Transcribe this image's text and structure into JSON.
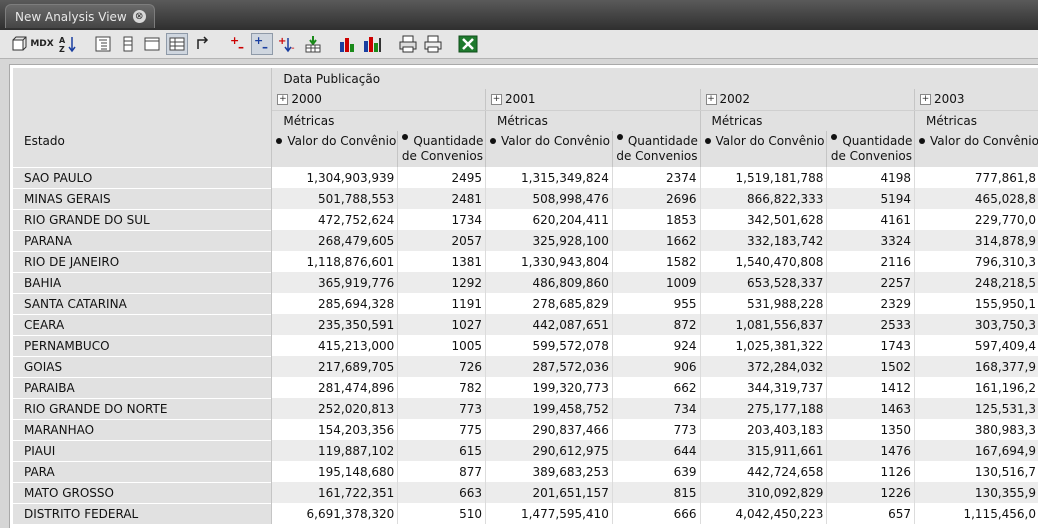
{
  "tab": {
    "title": "New Analysis View",
    "close": "⊗"
  },
  "toolbar": {
    "mdx_label": "MDX",
    "sort_label": "AZ"
  },
  "pivot": {
    "column_dimension": "Data Publicação",
    "row_dimension": "Estado",
    "metrics_label": "Métricas",
    "years": [
      "2000",
      "2001",
      "2002",
      "2003"
    ],
    "metric_value": "Valor do Convênio",
    "metric_qty_line1": "Quantidade",
    "metric_qty_line2": "de Convenios",
    "rows": [
      {
        "estado": "SAO PAULO",
        "cells": [
          "1,304,903,939",
          "2495",
          "1,315,349,824",
          "2374",
          "1,519,181,788",
          "4198",
          "777,861,8"
        ]
      },
      {
        "estado": "MINAS GERAIS",
        "cells": [
          "501,788,553",
          "2481",
          "508,998,476",
          "2696",
          "866,822,333",
          "5194",
          "465,028,8"
        ]
      },
      {
        "estado": "RIO GRANDE DO SUL",
        "cells": [
          "472,752,624",
          "1734",
          "620,204,411",
          "1853",
          "342,501,628",
          "4161",
          "229,770,0"
        ]
      },
      {
        "estado": "PARANA",
        "cells": [
          "268,479,605",
          "2057",
          "325,928,100",
          "1662",
          "332,183,742",
          "3324",
          "314,878,9"
        ]
      },
      {
        "estado": "RIO DE JANEIRO",
        "cells": [
          "1,118,876,601",
          "1381",
          "1,330,943,804",
          "1582",
          "1,540,470,808",
          "2116",
          "796,310,3"
        ]
      },
      {
        "estado": "BAHIA",
        "cells": [
          "365,919,776",
          "1292",
          "486,809,860",
          "1009",
          "653,528,337",
          "2257",
          "248,218,5"
        ]
      },
      {
        "estado": "SANTA CATARINA",
        "cells": [
          "285,694,328",
          "1191",
          "278,685,829",
          "955",
          "531,988,228",
          "2329",
          "155,950,1"
        ]
      },
      {
        "estado": "CEARA",
        "cells": [
          "235,350,591",
          "1027",
          "442,087,651",
          "872",
          "1,081,556,837",
          "2533",
          "303,750,3"
        ]
      },
      {
        "estado": "PERNAMBUCO",
        "cells": [
          "415,213,000",
          "1005",
          "599,572,078",
          "924",
          "1,025,381,322",
          "1743",
          "597,409,4"
        ]
      },
      {
        "estado": "GOIAS",
        "cells": [
          "217,689,705",
          "726",
          "287,572,036",
          "906",
          "372,284,032",
          "1502",
          "168,377,9"
        ]
      },
      {
        "estado": "PARAIBA",
        "cells": [
          "281,474,896",
          "782",
          "199,320,773",
          "662",
          "344,319,737",
          "1412",
          "161,196,2"
        ]
      },
      {
        "estado": "RIO GRANDE DO NORTE",
        "cells": [
          "252,020,813",
          "773",
          "199,458,752",
          "734",
          "275,177,188",
          "1463",
          "125,531,3"
        ]
      },
      {
        "estado": "MARANHAO",
        "cells": [
          "154,203,356",
          "775",
          "290,837,466",
          "773",
          "203,403,183",
          "1350",
          "380,983,3"
        ]
      },
      {
        "estado": "PIAUI",
        "cells": [
          "119,887,102",
          "615",
          "290,612,975",
          "644",
          "315,911,661",
          "1476",
          "167,694,9"
        ]
      },
      {
        "estado": "PARA",
        "cells": [
          "195,148,680",
          "877",
          "389,683,253",
          "639",
          "442,724,658",
          "1126",
          "130,516,7"
        ]
      },
      {
        "estado": "MATO GROSSO",
        "cells": [
          "161,722,351",
          "663",
          "201,651,157",
          "815",
          "310,092,829",
          "1226",
          "130,355,9"
        ]
      },
      {
        "estado": "DISTRITO FEDERAL",
        "cells": [
          "6,691,378,320",
          "510",
          "1,477,595,410",
          "666",
          "4,042,450,223",
          "657",
          "1,115,456,0"
        ]
      }
    ]
  }
}
